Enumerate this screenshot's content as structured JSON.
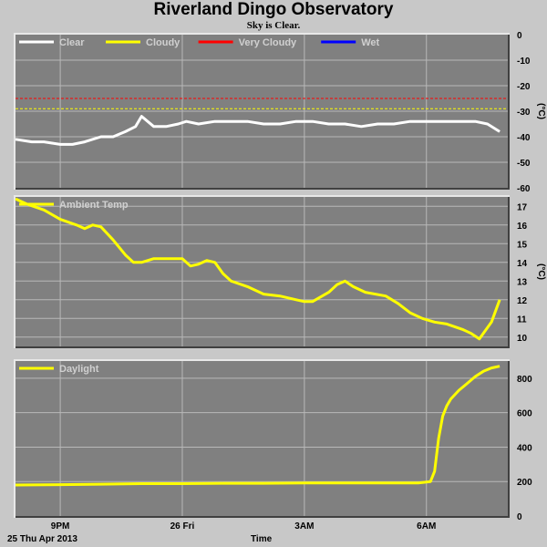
{
  "header": {
    "title": "Riverland Dingo Observatory",
    "subtitle": "Sky is Clear."
  },
  "footer": {
    "date_label": "25 Thu Apr 2013",
    "time_label": "Time"
  },
  "colors": {
    "panel_bg": "#808080",
    "page_bg": "#c8c8c8",
    "grid": "#b8b8b8",
    "clear": "#ffffff",
    "cloudy": "#ffff00",
    "very_cloudy": "#ff0000",
    "wet": "#0000ff"
  },
  "chart_data": [
    {
      "type": "line",
      "panel": "sky",
      "legend": [
        {
          "name": "Clear",
          "color": "#ffffff"
        },
        {
          "name": "Cloudy",
          "color": "#ffff00"
        },
        {
          "name": "Very Cloudy",
          "color": "#ff0000"
        },
        {
          "name": "Wet",
          "color": "#0000ff"
        }
      ],
      "ylabel": "(°C)",
      "ylim": [
        -60,
        0
      ],
      "yticks": [
        0,
        -10,
        -20,
        -30,
        -40,
        -50,
        -60
      ],
      "x_ticks": [
        {
          "label": "9PM",
          "hour": 21
        },
        {
          "label": "26 Fri",
          "hour": 24
        },
        {
          "label": "3AM",
          "hour": 27
        },
        {
          "label": "6AM",
          "hour": 30
        }
      ],
      "xlim_hours": [
        19.9,
        32
      ],
      "thresholds": [
        {
          "name": "Very Cloudy",
          "value": -25,
          "color": "#ff0000"
        },
        {
          "name": "Cloudy",
          "value": -29,
          "color": "#ffff00"
        }
      ],
      "series": [
        {
          "name": "Clear",
          "color": "#ffffff",
          "x": [
            19.9,
            20.3,
            20.6,
            21.0,
            21.3,
            21.6,
            22.0,
            22.3,
            22.6,
            22.85,
            23.0,
            23.3,
            23.6,
            23.9,
            24.1,
            24.4,
            24.8,
            25.2,
            25.6,
            26.0,
            26.4,
            26.8,
            27.2,
            27.6,
            28.0,
            28.4,
            28.8,
            29.2,
            29.6,
            30.0,
            30.4,
            30.8,
            31.2,
            31.5,
            31.8
          ],
          "values": [
            -41,
            -42,
            -42,
            -43,
            -43,
            -42,
            -40,
            -40,
            -38,
            -36,
            -32,
            -36,
            -36,
            -35,
            -34,
            -35,
            -34,
            -34,
            -34,
            -35,
            -35,
            -34,
            -34,
            -35,
            -35,
            -36,
            -35,
            -35,
            -34,
            -34,
            -34,
            -34,
            -34,
            -35,
            -38
          ]
        }
      ]
    },
    {
      "type": "line",
      "panel": "ambient",
      "legend": [
        {
          "name": "Ambient Temp",
          "color": "#ffff00"
        }
      ],
      "ylabel": "(°C)",
      "ylim": [
        9.5,
        17.5
      ],
      "yticks": [
        10,
        11,
        12,
        13,
        14,
        15,
        16,
        17
      ],
      "x_ticks": [
        {
          "label": "9PM",
          "hour": 21
        },
        {
          "label": "26 Fri",
          "hour": 24
        },
        {
          "label": "3AM",
          "hour": 27
        },
        {
          "label": "6AM",
          "hour": 30
        }
      ],
      "xlim_hours": [
        19.9,
        32
      ],
      "series": [
        {
          "name": "Ambient Temp",
          "color": "#ffff00",
          "x": [
            19.9,
            20.2,
            20.6,
            21.0,
            21.4,
            21.6,
            21.8,
            22.0,
            22.3,
            22.6,
            22.8,
            23.0,
            23.3,
            23.6,
            23.9,
            24.0,
            24.2,
            24.4,
            24.6,
            24.8,
            25.0,
            25.2,
            25.6,
            26.0,
            26.4,
            26.8,
            27.0,
            27.2,
            27.6,
            27.8,
            28.0,
            28.2,
            28.5,
            29.0,
            29.3,
            29.6,
            29.9,
            30.2,
            30.5,
            30.9,
            31.1,
            31.3,
            31.6,
            31.8
          ],
          "values": [
            17.4,
            17.1,
            16.8,
            16.3,
            16.0,
            15.8,
            16.0,
            15.9,
            15.2,
            14.4,
            14.0,
            14.0,
            14.2,
            14.2,
            14.2,
            14.2,
            13.8,
            13.9,
            14.1,
            14.0,
            13.4,
            13.0,
            12.7,
            12.3,
            12.2,
            12.0,
            11.9,
            11.9,
            12.4,
            12.8,
            13.0,
            12.7,
            12.4,
            12.2,
            11.8,
            11.3,
            11.0,
            10.8,
            10.7,
            10.4,
            10.2,
            9.9,
            10.8,
            12.0
          ]
        }
      ]
    },
    {
      "type": "line",
      "panel": "daylight",
      "legend": [
        {
          "name": "Daylight",
          "color": "#ffff00"
        }
      ],
      "ylim": [
        0,
        900
      ],
      "yticks": [
        0,
        200,
        400,
        600,
        800
      ],
      "x_ticks": [
        {
          "label": "9PM",
          "hour": 21
        },
        {
          "label": "26 Fri",
          "hour": 24
        },
        {
          "label": "3AM",
          "hour": 27
        },
        {
          "label": "6AM",
          "hour": 30
        }
      ],
      "xlim_hours": [
        19.9,
        32
      ],
      "series": [
        {
          "name": "Daylight",
          "color": "#ffff00",
          "x": [
            19.9,
            21.0,
            22.0,
            23.0,
            24.0,
            25.0,
            26.0,
            27.0,
            28.0,
            29.0,
            29.8,
            30.1,
            30.2,
            30.3,
            30.4,
            30.5,
            30.6,
            30.8,
            31.0,
            31.2,
            31.4,
            31.6,
            31.8
          ],
          "values": [
            180,
            182,
            185,
            188,
            188,
            190,
            190,
            192,
            192,
            192,
            192,
            200,
            260,
            450,
            580,
            640,
            680,
            730,
            770,
            810,
            840,
            860,
            870
          ]
        }
      ]
    }
  ]
}
